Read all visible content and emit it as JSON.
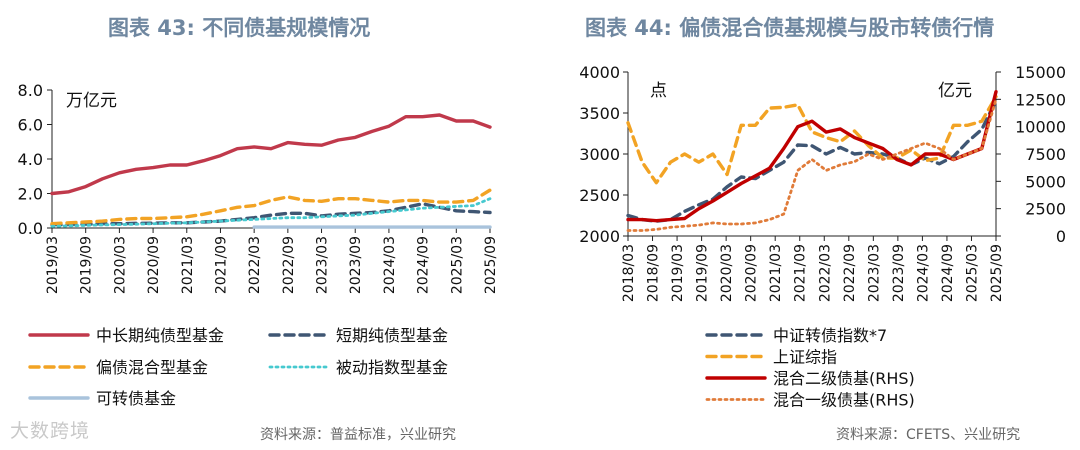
{
  "watermark": "大数跨境",
  "chart_data": [
    {
      "type": "line",
      "title": "图表 43: 不同债基规模情况",
      "unit_label": "万亿元",
      "ylim": [
        0,
        8
      ],
      "y_ticks": [
        "0.0",
        "2.0",
        "4.0",
        "6.0",
        "8.0"
      ],
      "x_ticks": [
        "2019/03",
        "2019/09",
        "2020/03",
        "2020/09",
        "2021/03",
        "2021/09",
        "2022/03",
        "2022/09",
        "2023/03",
        "2023/09",
        "2024/03",
        "2024/09",
        "2025/03",
        "2025/09"
      ],
      "source": "资料来源：普益标准，兴业研究",
      "series": [
        {
          "name": "中长期纯债型基金",
          "color": "#c0394b",
          "dash": "solid",
          "values": [
            2.0,
            2.1,
            2.4,
            2.85,
            3.2,
            3.4,
            3.5,
            3.65,
            3.65,
            3.9,
            4.2,
            4.6,
            4.7,
            4.6,
            4.95,
            4.85,
            4.8,
            5.1,
            5.25,
            5.6,
            5.9,
            6.45,
            6.45,
            6.55,
            6.2,
            6.2,
            5.85
          ]
        },
        {
          "name": "短期纯债型基金",
          "color": "#3f5673",
          "dash": "dash",
          "values": [
            0.2,
            0.2,
            0.22,
            0.25,
            0.25,
            0.27,
            0.28,
            0.3,
            0.3,
            0.35,
            0.4,
            0.5,
            0.6,
            0.75,
            0.85,
            0.85,
            0.7,
            0.8,
            0.85,
            0.9,
            1.0,
            1.2,
            1.4,
            1.2,
            1.0,
            0.95,
            0.9
          ]
        },
        {
          "name": "偏债混合型基金",
          "color": "#f2a324",
          "dash": "dash",
          "values": [
            0.25,
            0.3,
            0.35,
            0.4,
            0.5,
            0.55,
            0.55,
            0.6,
            0.65,
            0.8,
            1.0,
            1.2,
            1.3,
            1.6,
            1.8,
            1.6,
            1.55,
            1.7,
            1.7,
            1.6,
            1.5,
            1.6,
            1.6,
            1.5,
            1.5,
            1.6,
            2.2
          ]
        },
        {
          "name": "被动指数型基金",
          "color": "#46c9cf",
          "dash": "dot",
          "values": [
            0.1,
            0.12,
            0.15,
            0.18,
            0.2,
            0.22,
            0.25,
            0.28,
            0.3,
            0.35,
            0.4,
            0.45,
            0.5,
            0.55,
            0.6,
            0.6,
            0.65,
            0.7,
            0.75,
            0.85,
            0.95,
            1.05,
            1.15,
            1.2,
            1.25,
            1.3,
            1.7
          ]
        },
        {
          "name": "可转债基金",
          "color": "#a9c3dc",
          "dash": "solid",
          "values": [
            null,
            null,
            null,
            null,
            null,
            null,
            null,
            null,
            null,
            null,
            null,
            null,
            0.05,
            0.05,
            0.05,
            0.05,
            0.05,
            0.05,
            0.05,
            0.05,
            0.05,
            0.05,
            0.05,
            0.05,
            0.05,
            0.05,
            0.05
          ]
        }
      ]
    },
    {
      "type": "line",
      "title": "图表 44: 偏债混合债基规模与股市转债行情",
      "left_unit": "点",
      "right_unit": "亿元",
      "ylim": [
        2000,
        4000
      ],
      "y2lim": [
        0,
        15000
      ],
      "y_ticks": [
        "2000",
        "2500",
        "3000",
        "3500",
        "4000"
      ],
      "y2_ticks": [
        "0",
        "2500",
        "5000",
        "7500",
        "10000",
        "12500",
        "15000"
      ],
      "x_ticks": [
        "2018/03",
        "2018/09",
        "2019/03",
        "2019/09",
        "2020/03",
        "2020/09",
        "2021/03",
        "2021/09",
        "2022/03",
        "2022/09",
        "2023/03",
        "2023/09",
        "2024/03",
        "2024/09",
        "2025/03",
        "2025/09"
      ],
      "source": "资料来源：CFETS、兴业研究",
      "series": [
        {
          "name": "中证转债指数*7",
          "color": "#3f5673",
          "dash": "dash",
          "axis": "left",
          "values": [
            2250,
            2200,
            2180,
            2200,
            2300,
            2380,
            2450,
            2600,
            2720,
            2700,
            2800,
            2900,
            3110,
            3100,
            3000,
            3080,
            3000,
            3020,
            3000,
            2950,
            2870,
            2950,
            2880,
            2970,
            3150,
            3300,
            3650
          ]
        },
        {
          "name": "上证综指",
          "color": "#f2a324",
          "dash": "dash",
          "axis": "left",
          "values": [
            3380,
            2900,
            2650,
            2900,
            3000,
            2900,
            3000,
            2750,
            3350,
            3350,
            3560,
            3570,
            3600,
            3270,
            3200,
            3150,
            3280,
            3100,
            2950,
            2950,
            3050,
            2920,
            2950,
            3350,
            3350,
            3400,
            3700
          ]
        },
        {
          "name": "混合二级债基(RHS)",
          "color": "#c00000",
          "dash": "solid",
          "axis": "right",
          "values": [
            1500,
            1500,
            1400,
            1500,
            1600,
            2500,
            3200,
            4000,
            4800,
            5500,
            6200,
            8000,
            10000,
            10500,
            9500,
            9800,
            9000,
            8500,
            8000,
            7000,
            6500,
            7500,
            7500,
            7000,
            7500,
            8000,
            13200
          ]
        },
        {
          "name": "混合一级债基(RHS)",
          "color": "#e07b39",
          "dash": "dot",
          "axis": "right",
          "values": [
            500,
            500,
            600,
            800,
            900,
            1000,
            1200,
            1100,
            1100,
            1200,
            1500,
            2000,
            6000,
            7000,
            6000,
            6500,
            6800,
            7500,
            7000,
            7500,
            8000,
            8500,
            8000,
            7000,
            7500,
            8000,
            12500
          ]
        }
      ]
    }
  ]
}
